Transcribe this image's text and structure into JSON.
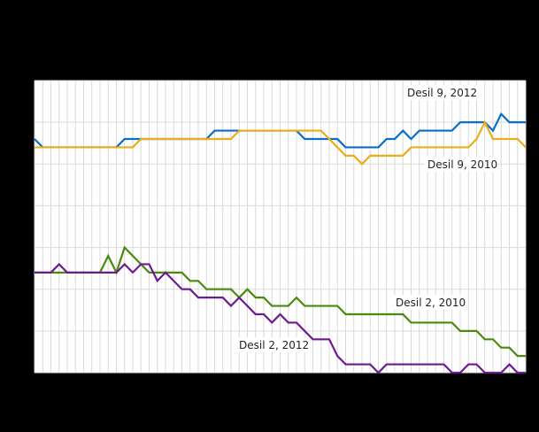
{
  "chart_data": {
    "type": "line",
    "title": "",
    "xlabel": "",
    "ylabel": "",
    "grid": true,
    "legend": "inline labels",
    "x": [
      0,
      1,
      2,
      3,
      4,
      5,
      6,
      7,
      8,
      9,
      10,
      11,
      12,
      13,
      14,
      15,
      16,
      17,
      18,
      19,
      20,
      21,
      22,
      23,
      24,
      25,
      26,
      27,
      28,
      29,
      30,
      31,
      32,
      33,
      34,
      35,
      36,
      37,
      38,
      39,
      40,
      41,
      42,
      43,
      44,
      45,
      46,
      47,
      48,
      49,
      50,
      51,
      52,
      53,
      54,
      55,
      56,
      57,
      58,
      59,
      60
    ],
    "ylim": [
      0,
      35
    ],
    "y_unit_note": "values in relative step units (axis tick labels not visible)",
    "series": [
      {
        "name": "Desil 9, 2012",
        "color": "#0a6fc8",
        "values": [
          28,
          27,
          27,
          27,
          27,
          27,
          27,
          27,
          27,
          27,
          27,
          28,
          28,
          28,
          28,
          28,
          28,
          28,
          28,
          28,
          28,
          28,
          29,
          29,
          29,
          29,
          29,
          29,
          29,
          29,
          29,
          29,
          29,
          28,
          28,
          28,
          28,
          28,
          27,
          27,
          27,
          27,
          27,
          28,
          28,
          29,
          28,
          29,
          29,
          29,
          29,
          29,
          30,
          30,
          30,
          30,
          29,
          31,
          30,
          30,
          30
        ]
      },
      {
        "name": "Desil 9, 2010",
        "color": "#e8ae1c",
        "values": [
          27,
          27,
          27,
          27,
          27,
          27,
          27,
          27,
          27,
          27,
          27,
          27,
          27,
          28,
          28,
          28,
          28,
          28,
          28,
          28,
          28,
          28,
          28,
          28,
          28,
          29,
          29,
          29,
          29,
          29,
          29,
          29,
          29,
          29,
          29,
          29,
          28,
          27,
          26,
          26,
          25,
          26,
          26,
          26,
          26,
          26,
          27,
          27,
          27,
          27,
          27,
          27,
          27,
          27,
          28,
          30,
          28,
          28,
          28,
          28,
          27
        ]
      },
      {
        "name": "Desil 2, 2010",
        "color": "#4a8a0c",
        "values": [
          12,
          12,
          12,
          12,
          12,
          12,
          12,
          12,
          12,
          14,
          12,
          15,
          14,
          13,
          12,
          12,
          12,
          12,
          12,
          11,
          11,
          10,
          10,
          10,
          10,
          9,
          10,
          9,
          9,
          8,
          8,
          8,
          9,
          8,
          8,
          8,
          8,
          8,
          7,
          7,
          7,
          7,
          7,
          7,
          7,
          7,
          6,
          6,
          6,
          6,
          6,
          6,
          5,
          5,
          5,
          4,
          4,
          3,
          3,
          2,
          2
        ]
      },
      {
        "name": "Desil 2, 2012",
        "color": "#6c1a8e",
        "values": [
          12,
          12,
          12,
          13,
          12,
          12,
          12,
          12,
          12,
          12,
          12,
          13,
          12,
          13,
          13,
          11,
          12,
          11,
          10,
          10,
          9,
          9,
          9,
          9,
          8,
          9,
          8,
          7,
          7,
          6,
          7,
          6,
          6,
          5,
          4,
          4,
          4,
          2,
          1,
          1,
          1,
          1,
          0,
          1,
          1,
          1,
          1,
          1,
          1,
          1,
          1,
          0,
          0,
          1,
          1,
          0,
          0,
          0,
          1,
          0,
          0
        ]
      }
    ],
    "annotations": [
      {
        "text": "Desil  9, 2012",
        "series": "Desil 9, 2012"
      },
      {
        "text": "Desil  9, 2010",
        "series": "Desil 9, 2010"
      },
      {
        "text": "Desil  2, 2010",
        "series": "Desil 2, 2010"
      },
      {
        "text": "Desil  2, 2012",
        "series": "Desil 2, 2012"
      }
    ]
  },
  "labels": {
    "d9_2012": "Desil  9, 2012",
    "d9_2010": "Desil  9, 2010",
    "d2_2010": "Desil  2, 2010",
    "d2_2012": "Desil  2, 2012"
  }
}
